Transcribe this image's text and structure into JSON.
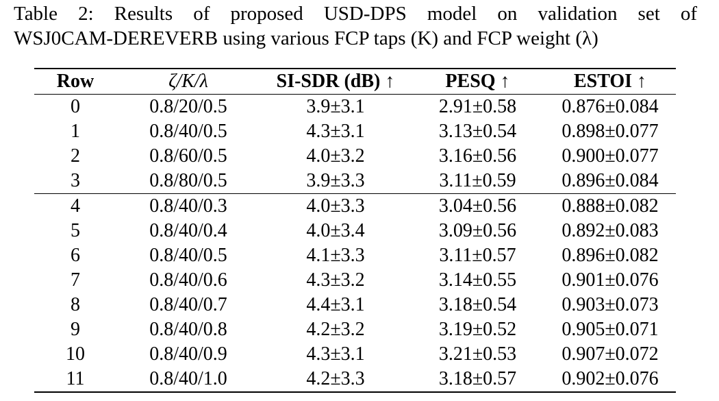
{
  "caption": {
    "line1": "Table 2: Results of proposed USD-DPS model on validation set of",
    "line2": "WSJ0CAM-DEREVERB using various FCP taps (K) and FCP weight (λ)"
  },
  "table": {
    "headers": [
      "Row",
      "ζ/K/λ",
      "SI-SDR (dB) ↑",
      "PESQ ↑",
      "ESTOI ↑"
    ],
    "group1": [
      [
        "0",
        "0.8/20/0.5",
        "3.9±3.1",
        "2.91±0.58",
        "0.876±0.084"
      ],
      [
        "1",
        "0.8/40/0.5",
        "4.3±3.1",
        "3.13±0.54",
        "0.898±0.077"
      ],
      [
        "2",
        "0.8/60/0.5",
        "4.0±3.2",
        "3.16±0.56",
        "0.900±0.077"
      ],
      [
        "3",
        "0.8/80/0.5",
        "3.9±3.3",
        "3.11±0.59",
        "0.896±0.084"
      ]
    ],
    "group2": [
      [
        "4",
        "0.8/40/0.3",
        "4.0±3.3",
        "3.04±0.56",
        "0.888±0.082"
      ],
      [
        "5",
        "0.8/40/0.4",
        "4.0±3.4",
        "3.09±0.56",
        "0.892±0.083"
      ],
      [
        "6",
        "0.8/40/0.5",
        "4.1±3.3",
        "3.11±0.57",
        "0.896±0.082"
      ],
      [
        "7",
        "0.8/40/0.6",
        "4.3±3.2",
        "3.14±0.55",
        "0.901±0.076"
      ],
      [
        "8",
        "0.8/40/0.7",
        "4.4±3.1",
        "3.18±0.54",
        "0.903±0.073"
      ],
      [
        "9",
        "0.8/40/0.8",
        "4.2±3.2",
        "3.19±0.52",
        "0.905±0.071"
      ],
      [
        "10",
        "0.8/40/0.9",
        "4.3±3.1",
        "3.21±0.53",
        "0.907±0.072"
      ],
      [
        "11",
        "0.8/40/1.0",
        "4.2±3.3",
        "3.18±0.57",
        "0.902±0.076"
      ]
    ]
  }
}
